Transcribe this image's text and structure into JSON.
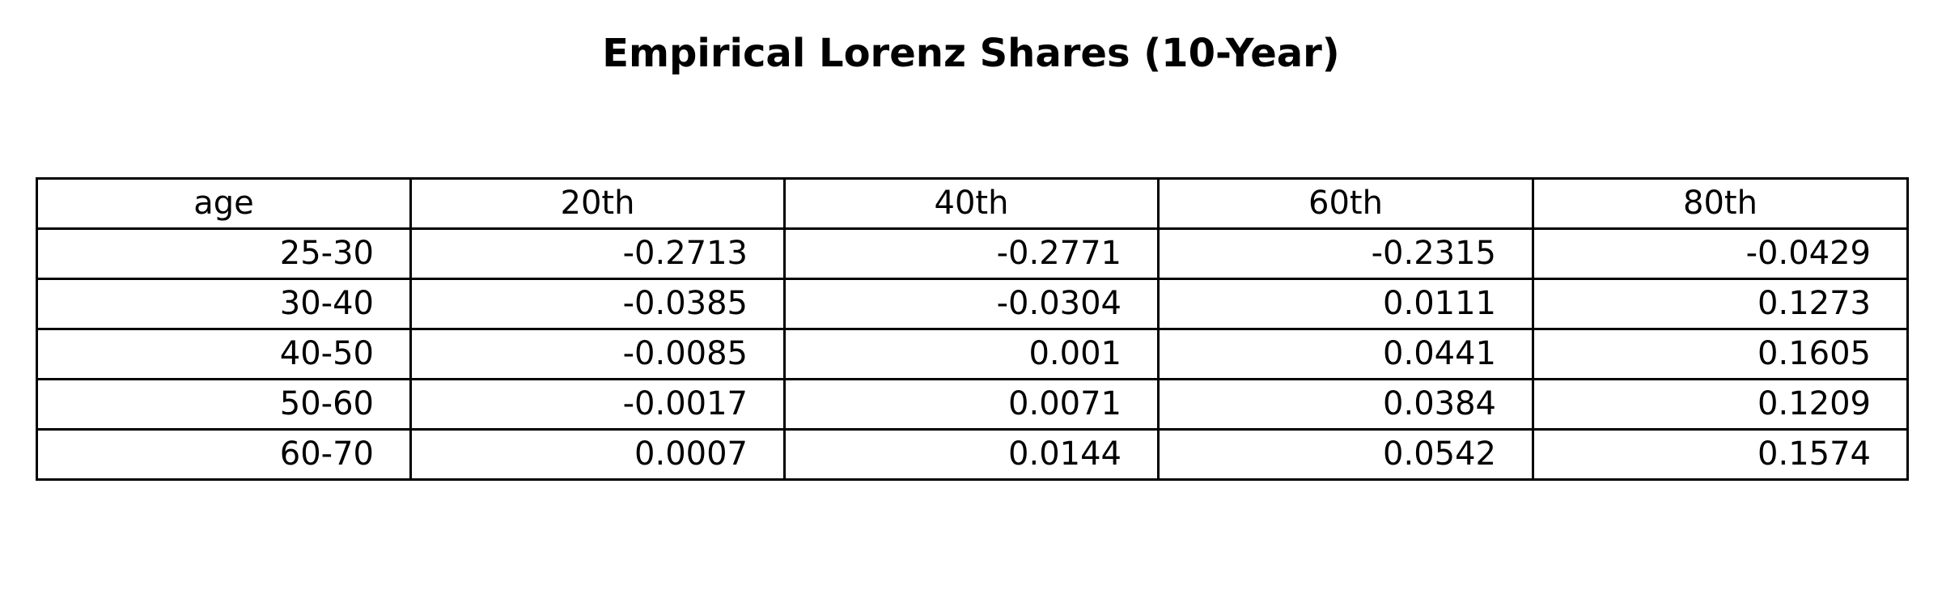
{
  "chart_data": {
    "type": "table",
    "title": "Empirical Lorenz Shares (10-Year)",
    "columns": [
      "age",
      "20th",
      "40th",
      "60th",
      "80th"
    ],
    "rows": [
      [
        "25-30",
        "-0.2713",
        "-0.2771",
        "-0.2315",
        "-0.0429"
      ],
      [
        "30-40",
        "-0.0385",
        "-0.0304",
        "0.0111",
        "0.1273"
      ],
      [
        "40-50",
        "-0.0085",
        "0.001",
        "0.0441",
        "0.1605"
      ],
      [
        "50-60",
        "-0.0017",
        "0.0071",
        "0.0384",
        "0.1209"
      ],
      [
        "60-70",
        "0.0007",
        "0.0144",
        "0.0542",
        "0.1574"
      ]
    ]
  }
}
